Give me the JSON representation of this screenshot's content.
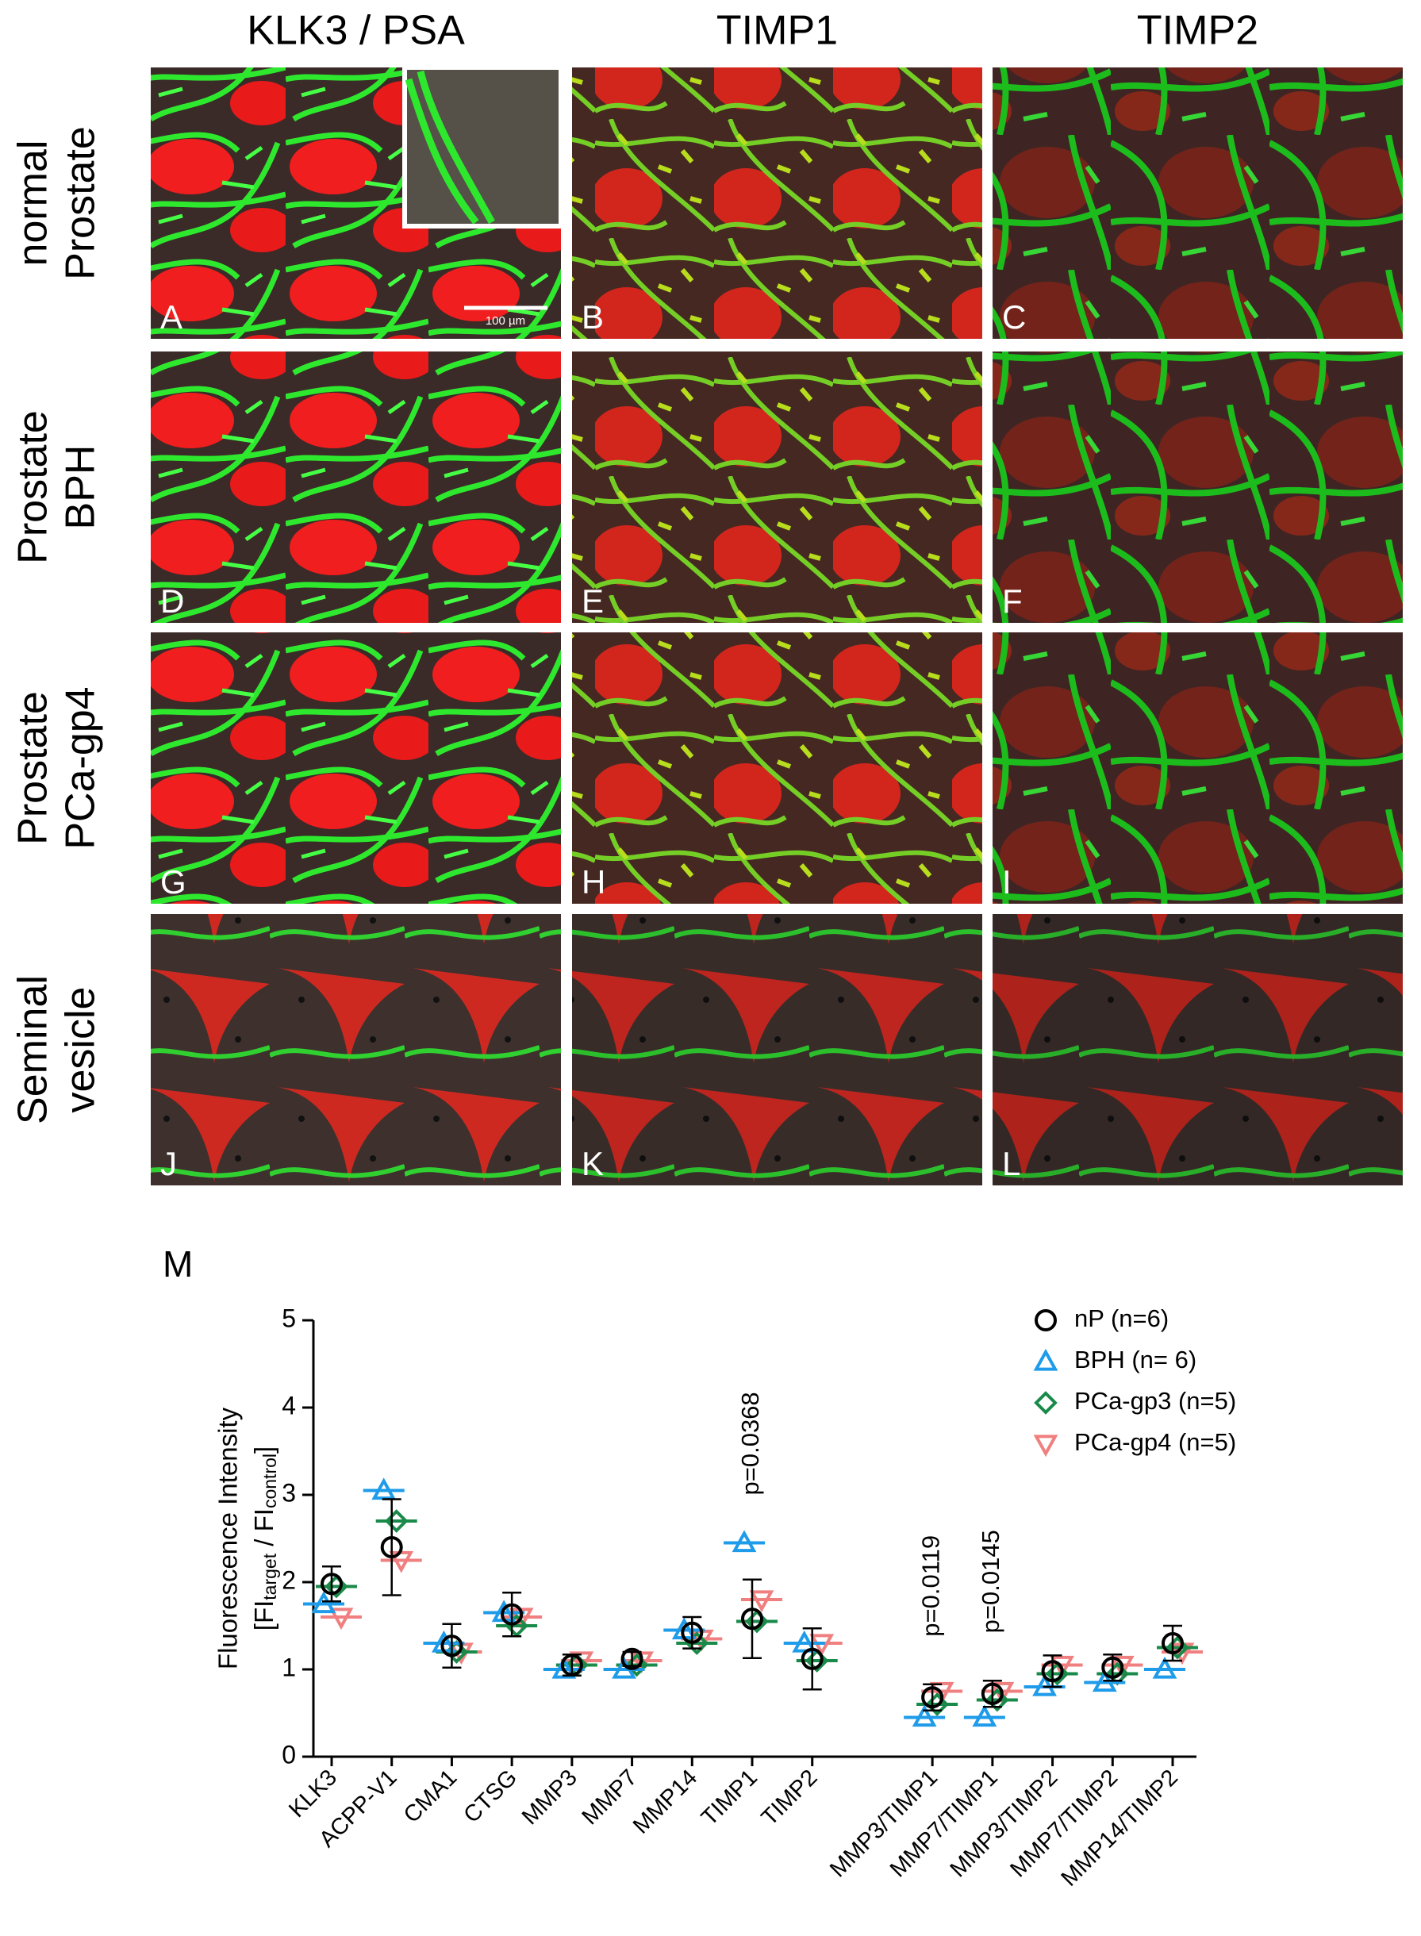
{
  "figure": {
    "column_headers": [
      "KLK3 / PSA",
      "TIMP1",
      "TIMP2"
    ],
    "row_labels": [
      [
        "normal",
        "Prostate"
      ],
      [
        "Prostate",
        "BPH"
      ],
      [
        "Prostate",
        "PCa-gp4"
      ],
      [
        "Seminal",
        "vesicle"
      ]
    ],
    "panel_letters": [
      "A",
      "B",
      "C",
      "D",
      "E",
      "F",
      "G",
      "H",
      "I",
      "J",
      "K",
      "L"
    ],
    "scale_bar": "100 µm"
  },
  "chart_data": {
    "type": "scatter",
    "panel_label": "M",
    "ylabel_lines": [
      "Fluorescence Intensity",
      [
        "[FI",
        "target",
        " / FI",
        "control",
        "]"
      ]
    ],
    "categories": [
      "KLK3",
      "ACPP-V1",
      "CMA1",
      "CTSG",
      "MMP3",
      "MMP7",
      "MMP14",
      "TIMP1",
      "TIMP2",
      null,
      "MMP3/TIMP1",
      "MMP7/TIMP1",
      "MMP3/TIMP2",
      "MMP7/TIMP2",
      "MMP14/TIMP2"
    ],
    "ylim": [
      0,
      5
    ],
    "yticks": [
      0,
      1,
      2,
      3,
      4,
      5
    ],
    "legend": "upper right",
    "series": [
      {
        "name": "nP (n=6)",
        "color": "#000000",
        "marker": "circle",
        "values": [
          1.98,
          2.4,
          1.27,
          1.63,
          1.05,
          1.12,
          1.42,
          1.58,
          1.12,
          null,
          0.68,
          0.72,
          0.98,
          1.02,
          1.3
        ],
        "errors": [
          0.2,
          0.55,
          0.25,
          0.25,
          0.12,
          0.08,
          0.18,
          0.45,
          0.35,
          null,
          0.15,
          0.15,
          0.18,
          0.15,
          0.2
        ]
      },
      {
        "name": "BPH (n= 6)",
        "color": "#1e9be9",
        "marker": "triangle",
        "values": [
          1.75,
          3.05,
          1.3,
          1.65,
          1.0,
          1.0,
          1.45,
          2.45,
          1.3,
          null,
          0.45,
          0.45,
          0.8,
          0.85,
          1.0
        ]
      },
      {
        "name": "PCa-gp3 (n=5)",
        "color": "#1a8a4a",
        "marker": "diamond",
        "values": [
          1.95,
          2.7,
          1.2,
          1.5,
          1.05,
          1.05,
          1.3,
          1.55,
          1.1,
          null,
          0.6,
          0.65,
          0.95,
          0.95,
          1.25
        ]
      },
      {
        "name": "PCa-gp4 (n=5)",
        "color": "#f08080",
        "marker": "triangle-down",
        "values": [
          1.6,
          2.25,
          1.2,
          1.6,
          1.1,
          1.1,
          1.35,
          1.8,
          1.3,
          null,
          0.75,
          0.75,
          1.05,
          1.05,
          1.2
        ]
      }
    ],
    "annotations": [
      {
        "category": "TIMP1",
        "text": "p=0.0368"
      },
      {
        "category": "MMP3/TIMP1",
        "text": "p=0.0119"
      },
      {
        "category": "MMP7/TIMP1",
        "text": "p=0.0145"
      }
    ]
  }
}
